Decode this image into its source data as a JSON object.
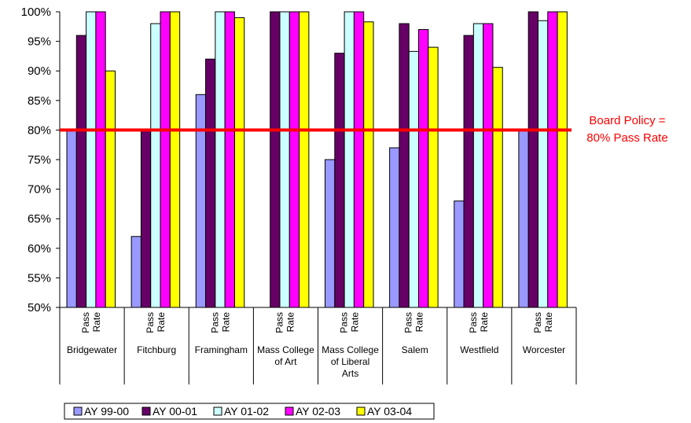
{
  "chart_data": {
    "type": "bar",
    "title": "",
    "xlabel": "",
    "ylabel": "",
    "ylim": [
      50,
      100
    ],
    "y_ticks": [
      "50%",
      "55%",
      "60%",
      "65%",
      "70%",
      "75%",
      "80%",
      "85%",
      "90%",
      "95%",
      "100%"
    ],
    "y_tick_values": [
      50,
      55,
      60,
      65,
      70,
      75,
      80,
      85,
      90,
      95,
      100
    ],
    "grid": false,
    "legend_position": "bottom",
    "sub_category_label": [
      "Pass",
      "Rate"
    ],
    "categories": [
      [
        "Bridgewater"
      ],
      [
        "Fitchburg"
      ],
      [
        "Framingham"
      ],
      [
        "Mass College",
        "of Art"
      ],
      [
        "Mass College",
        "of Liberal",
        "Arts"
      ],
      [
        "Salem"
      ],
      [
        "Westfield"
      ],
      [
        "Worcester"
      ]
    ],
    "series": [
      {
        "name": "AY 99-00",
        "color": "#9999ff",
        "values": [
          80,
          62,
          86,
          null,
          75,
          77,
          68,
          80
        ]
      },
      {
        "name": "AY 00-01",
        "color": "#660066",
        "values": [
          96,
          80,
          92,
          100,
          93,
          98,
          96,
          100
        ]
      },
      {
        "name": "AY 01-02",
        "color": "#ccffff",
        "values": [
          100,
          98,
          100,
          100,
          100,
          93.3,
          98,
          98.5
        ]
      },
      {
        "name": "AY 02-03",
        "color": "#ff00ff",
        "values": [
          100,
          100,
          100,
          100,
          100,
          97,
          98,
          100
        ]
      },
      {
        "name": "AY 03-04",
        "color": "#ffff00",
        "values": [
          90,
          100,
          99,
          100,
          98.3,
          94,
          90.6,
          100
        ]
      }
    ],
    "reference_line": {
      "value": 80,
      "color": "#ff0000",
      "label": [
        "Board Policy =",
        "80% Pass Rate"
      ]
    }
  }
}
